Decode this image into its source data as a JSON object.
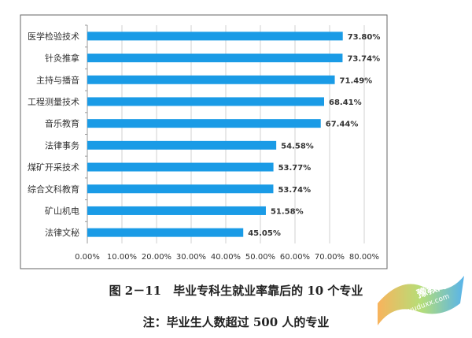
{
  "chart_data": {
    "type": "bar",
    "orientation": "horizontal",
    "categories": [
      "医学检验技术",
      "针灸推拿",
      "主持与播音",
      "工程测量技术",
      "音乐教育",
      "法律事务",
      "煤矿开采技术",
      "综合文科教育",
      "矿山机电",
      "法律文秘"
    ],
    "values": [
      73.8,
      73.74,
      71.49,
      68.41,
      67.44,
      54.58,
      53.77,
      53.74,
      51.58,
      45.05
    ],
    "data_labels": [
      "73.80%",
      "73.74%",
      "71.49%",
      "68.41%",
      "67.44%",
      "54.58%",
      "53.77%",
      "53.74%",
      "51.58%",
      "45.05%"
    ],
    "xlim": [
      0,
      80
    ],
    "x_ticks": [
      "0.00%",
      "10.00%",
      "20.00%",
      "30.00%",
      "40.00%",
      "50.00%",
      "60.00%",
      "70.00%",
      "80.00%"
    ],
    "grid": true,
    "bar_color": "#1a9be6",
    "title": "",
    "xlabel": "",
    "ylabel": ""
  },
  "caption": {
    "line1": "图 2－11　毕业专科生就业率靠后的 10 个专业",
    "line2": "注：毕业生人数超过 500 人的专业"
  },
  "watermark": {
    "text": "豫教网",
    "url": "yuduxx.com"
  }
}
